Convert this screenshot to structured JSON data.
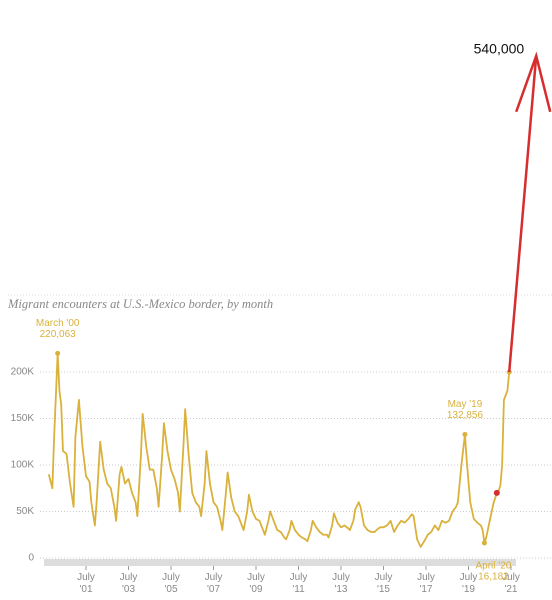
{
  "chart_data": {
    "type": "line",
    "subtitle": "Migrant encounters at U.S.-Mexico border, by month",
    "x": [
      "1999-10",
      "1999-12",
      "2000-01",
      "2000-03",
      "2000-04",
      "2000-05",
      "2000-06",
      "2000-08",
      "2000-10",
      "2000-12",
      "2001-01",
      "2001-03",
      "2001-05",
      "2001-07",
      "2001-09",
      "2001-10",
      "2001-12",
      "2002-01",
      "2002-03",
      "2002-05",
      "2002-07",
      "2002-09",
      "2002-11",
      "2002-12",
      "2003-02",
      "2003-03",
      "2003-05",
      "2003-07",
      "2003-09",
      "2003-11",
      "2003-12",
      "2004-02",
      "2004-03",
      "2004-05",
      "2004-07",
      "2004-09",
      "2004-11",
      "2004-12",
      "2005-02",
      "2005-03",
      "2005-05",
      "2005-07",
      "2005-09",
      "2005-11",
      "2005-12",
      "2006-02",
      "2006-03",
      "2006-05",
      "2006-07",
      "2006-09",
      "2006-11",
      "2006-12",
      "2007-02",
      "2007-03",
      "2007-05",
      "2007-07",
      "2007-09",
      "2007-11",
      "2007-12",
      "2008-02",
      "2008-03",
      "2008-05",
      "2008-07",
      "2008-09",
      "2008-11",
      "2008-12",
      "2009-02",
      "2009-03",
      "2009-05",
      "2009-07",
      "2009-09",
      "2009-11",
      "2009-12",
      "2010-02",
      "2010-03",
      "2010-05",
      "2010-07",
      "2010-09",
      "2010-11",
      "2010-12",
      "2011-02",
      "2011-03",
      "2011-05",
      "2011-07",
      "2011-09",
      "2011-11",
      "2011-12",
      "2012-02",
      "2012-03",
      "2012-05",
      "2012-07",
      "2012-09",
      "2012-11",
      "2012-12",
      "2013-02",
      "2013-03",
      "2013-05",
      "2013-07",
      "2013-09",
      "2013-11",
      "2013-12",
      "2014-02",
      "2014-03",
      "2014-05",
      "2014-06",
      "2014-08",
      "2014-10",
      "2014-12",
      "2015-02",
      "2015-03",
      "2015-05",
      "2015-07",
      "2015-09",
      "2015-11",
      "2016-01",
      "2016-03",
      "2016-05",
      "2016-07",
      "2016-09",
      "2016-11",
      "2016-12",
      "2017-02",
      "2017-04",
      "2017-06",
      "2017-08",
      "2017-10",
      "2017-12",
      "2018-02",
      "2018-04",
      "2018-06",
      "2018-08",
      "2018-10",
      "2018-12",
      "2019-01",
      "2019-03",
      "2019-05",
      "2019-06",
      "2019-07",
      "2019-08",
      "2019-10",
      "2019-12",
      "2020-02",
      "2020-03",
      "2020-04",
      "2020-05",
      "2020-07",
      "2020-09",
      "2020-11",
      "2020-12",
      "2021-01",
      "2021-02",
      "2021-03",
      "2021-04",
      "2021-05",
      "2021-06"
    ],
    "series": [
      {
        "name": "Migrant encounters",
        "color": "#d9b13b",
        "values": [
          90000,
          75000,
          130000,
          220063,
          180000,
          165000,
          115000,
          112000,
          80000,
          55000,
          130000,
          170000,
          120000,
          88000,
          82000,
          60000,
          35000,
          60000,
          125000,
          95000,
          80000,
          75000,
          55000,
          40000,
          90000,
          98000,
          80000,
          85000,
          70000,
          60000,
          45000,
          110000,
          155000,
          120000,
          95000,
          95000,
          75000,
          55000,
          110000,
          145000,
          115000,
          95000,
          85000,
          70000,
          50000,
          120000,
          160000,
          110000,
          70000,
          60000,
          55000,
          45000,
          80000,
          115000,
          80000,
          60000,
          55000,
          40000,
          30000,
          70000,
          92000,
          65000,
          50000,
          45000,
          35000,
          30000,
          50000,
          68000,
          50000,
          42000,
          40000,
          30000,
          25000,
          40000,
          50000,
          40000,
          30000,
          28000,
          22000,
          20000,
          30000,
          40000,
          30000,
          25000,
          22000,
          20000,
          18000,
          30000,
          40000,
          33000,
          28000,
          25000,
          25000,
          22000,
          35000,
          48000,
          38000,
          33000,
          35000,
          32000,
          30000,
          40000,
          52000,
          60000,
          55000,
          35000,
          30000,
          28000,
          28000,
          30000,
          33000,
          33000,
          35000,
          40000,
          28000,
          35000,
          40000,
          38000,
          42000,
          47000,
          45000,
          20000,
          12000,
          18000,
          25000,
          28000,
          35000,
          30000,
          40000,
          38000,
          40000,
          50000,
          55000,
          60000,
          100000,
          132856,
          105000,
          82000,
          60000,
          42000,
          38000,
          35000,
          30000,
          16182,
          22000,
          40000,
          58000,
          70000,
          72000,
          78000,
          100000,
          170000,
          175000,
          180000,
          200000
        ]
      }
    ],
    "annotations": [
      {
        "x": "2000-03",
        "label": "March '00",
        "value_label": "220,063"
      },
      {
        "x": "2019-05",
        "label": "May '19",
        "value_label": "132,856"
      },
      {
        "x": "2020-04",
        "label": "April '20",
        "value_label": "16,182"
      }
    ],
    "highlight": {
      "x": "2020-11",
      "color": "#d62e2e"
    },
    "arrow": {
      "value": 540000,
      "label": "540,000",
      "color": "#d62e2e"
    },
    "xlim": [
      "1999-07",
      "2021-10"
    ],
    "xticks": [
      {
        "value": "2001-07",
        "label": "July '01"
      },
      {
        "value": "2003-07",
        "label": "July '03"
      },
      {
        "value": "2005-07",
        "label": "July '05"
      },
      {
        "value": "2007-07",
        "label": "July '07"
      },
      {
        "value": "2009-07",
        "label": "July '09"
      },
      {
        "value": "2011-07",
        "label": "July '11"
      },
      {
        "value": "2013-07",
        "label": "July '13"
      },
      {
        "value": "2015-07",
        "label": "July '15"
      },
      {
        "value": "2017-07",
        "label": "July '17"
      },
      {
        "value": "2019-07",
        "label": "July '19"
      },
      {
        "value": "2021-07",
        "label": "July '21"
      }
    ],
    "ylim": [
      0,
      600000
    ],
    "yticks": [
      0,
      {
        "value": 50000,
        "label": "50K"
      },
      {
        "value": 100000,
        "label": "100K"
      },
      {
        "value": 150000,
        "label": "150K"
      },
      {
        "value": 200000,
        "label": "200K"
      }
    ],
    "grid": true
  }
}
